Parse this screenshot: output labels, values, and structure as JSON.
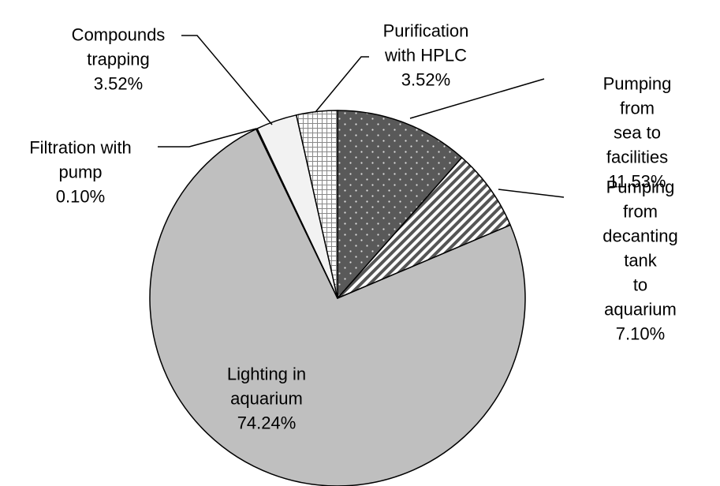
{
  "chart_data": {
    "type": "pie",
    "categories": [
      "Pumping from\nsea to facilities",
      "Pumping from\ndecanting tank\nto aquarium",
      "Lighting in\naquarium",
      "Filtration with\npump",
      "Compounds\ntrapping",
      "Purification\nwith HPLC"
    ],
    "values": [
      11.53,
      7.1,
      74.24,
      0.1,
      3.52,
      3.52
    ],
    "value_labels": [
      "11.53%",
      "7.10%",
      "74.24%",
      "0.10%",
      "3.52%",
      "3.52%"
    ],
    "colors": [
      "#595959",
      "#ffffff",
      "#bfbfbf",
      "#ffffff",
      "#f2f2f2",
      "#ffffff"
    ],
    "patterns": [
      "dots",
      "stripes",
      null,
      null,
      null,
      "grid"
    ]
  }
}
